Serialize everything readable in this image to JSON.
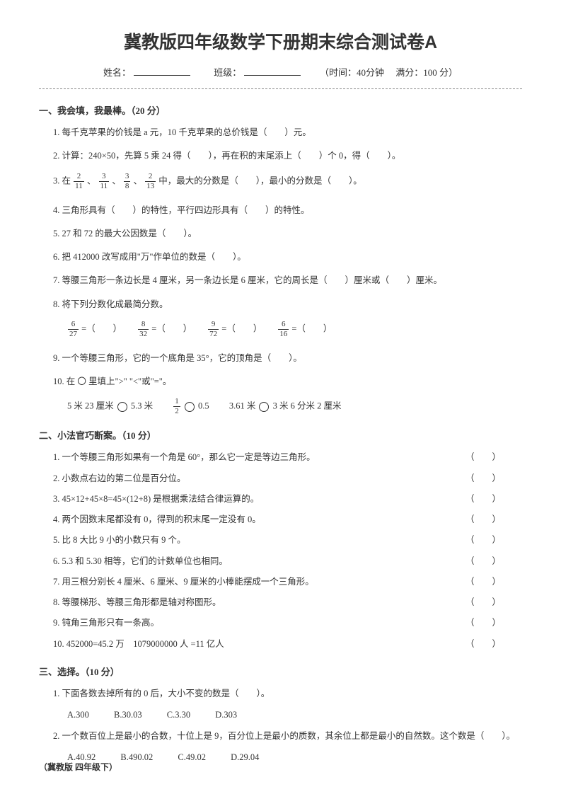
{
  "title": "冀教版四年级数学下册期末综合测试卷A",
  "header": {
    "name_label": "姓名：",
    "class_label": "班级：",
    "time_label": "（时间：40分钟",
    "full_label": "满分：100 分）"
  },
  "section1": {
    "title": "一、我会填，我最棒。（20 分）",
    "q1": "1. 每千克苹果的价钱是 a 元，10 千克苹果的总价钱是（　　）元。",
    "q2": "2. 计算：240×50，先算 5 乘 24 得（　　），再在积的末尾添上（　　）个 0，得（　　）。",
    "q3_prefix": "3. 在",
    "q3_mid1": "、",
    "q3_mid2": "、",
    "q3_mid3": "、",
    "q3_suffix": "中，最大的分数是（　　），最小的分数是（　　）。",
    "q3_f1n": "2",
    "q3_f1d": "11",
    "q3_f2n": "3",
    "q3_f2d": "11",
    "q3_f3n": "3",
    "q3_f3d": "8",
    "q3_f4n": "2",
    "q3_f4d": "13",
    "q4": "4. 三角形具有（　　）的特性，平行四边形具有（　　）的特性。",
    "q5": "5. 27 和 72 的最大公因数是（　　）。",
    "q6": "6. 把 412000 改写成用\"万\"作单位的数是（　　）。",
    "q7": "7. 等腰三角形一条边长是 4 厘米，另一条边长是 6 厘米，它的周长是（　　）厘米或（　　）厘米。",
    "q8": "8. 将下列分数化成最简分数。",
    "q8_f1n": "6",
    "q8_f1d": "27",
    "q8_f2n": "8",
    "q8_f2d": "32",
    "q8_f3n": "9",
    "q8_f3d": "72",
    "q8_f4n": "6",
    "q8_f4d": "16",
    "q8_eq": "=（　　）",
    "q9": "9. 一个等腰三角形，它的一个底角是 35°，它的顶角是（　　）。",
    "q10": "10. 在 〇 里填上\">\" \"<\"或\"=\"。",
    "q10_a": "5 米 23 厘米",
    "q10_b": "5.3 米",
    "q10_c_fn": "1",
    "q10_c_fd": "2",
    "q10_d": "0.5",
    "q10_e": "3.61 米",
    "q10_f": "3 米 6 分米 2 厘米"
  },
  "section2": {
    "title": "二、小法官巧断案。（10 分）",
    "q1": "1. 一个等腰三角形如果有一个角是 60°，那么它一定是等边三角形。",
    "q2": "2. 小数点右边的第二位是百分位。",
    "q3": "3. 45×12+45×8=45×(12+8) 是根据乘法结合律运算的。",
    "q4": "4. 两个因数末尾都没有 0，得到的积末尾一定没有 0。",
    "q5": "5. 比 8 大比 9 小的小数只有 9 个。",
    "q6": "6. 5.3 和 5.30 相等，它们的计数单位也相同。",
    "q7": "7. 用三根分别长 4 厘米、6 厘米、9 厘米的小棒能摆成一个三角形。",
    "q8": "8. 等腰梯形、等腰三角形都是轴对称图形。",
    "q9": "9. 钝角三角形只有一条高。",
    "q10": "10. 452000=45.2 万　1079000000 人 =11 亿人",
    "paren": "（　　）"
  },
  "section3": {
    "title": "三、选择。（10 分）",
    "q1": "1. 下面各数去掉所有的 0 后，大小不变的数是（　　）。",
    "q1_a": "A.300",
    "q1_b": "B.30.03",
    "q1_c": "C.3.30",
    "q1_d": "D.303",
    "q2": "2. 一个数百位上是最小的合数，十位上是 9，百分位上是最小的质数，其余位上都是最小的自然数。这个数是（　　）。",
    "q2_a": "A.40.92",
    "q2_b": "B.490.02",
    "q2_c": "C.49.02",
    "q2_d": "D.29.04"
  },
  "footer": "（冀教版 四年级下）"
}
